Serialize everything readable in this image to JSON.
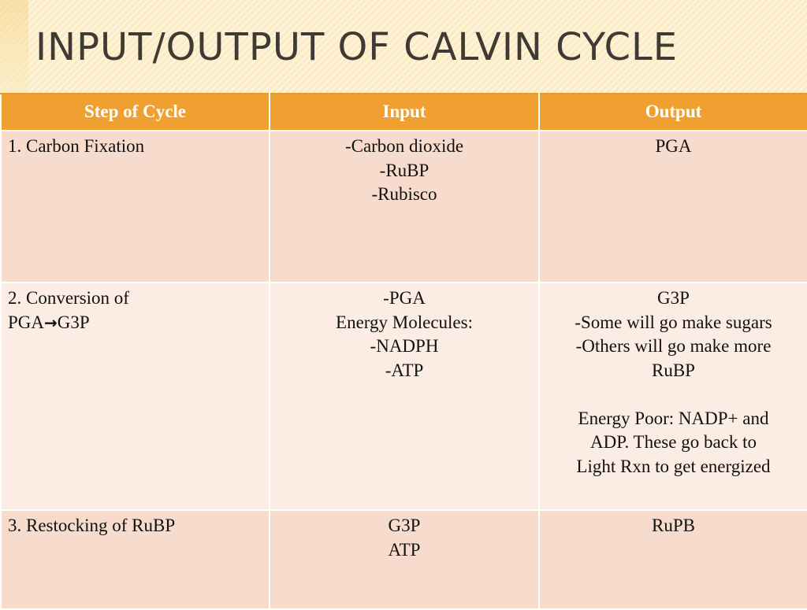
{
  "slide": {
    "title": "INPUT/OUTPUT OF CALVIN CYCLE"
  },
  "table": {
    "headers": [
      "Step of Cycle",
      "Input",
      "Output"
    ],
    "rows": [
      {
        "step_lines": [
          "1. Carbon Fixation"
        ],
        "input_lines": [
          "-Carbon dioxide",
          "-RuBP",
          "-Rubisco"
        ],
        "output_lines": [
          "PGA"
        ]
      },
      {
        "step_line1": "2. Conversion of",
        "step_line2_a": "PGA",
        "step_line2_arrow": "→",
        "step_line2_b": "G3P",
        "input_lines": [
          "-PGA",
          "Energy Molecules:",
          "-NADPH",
          "-ATP"
        ],
        "output_lines": [
          "G3P",
          "-Some will go make sugars",
          "-Others will go make more",
          "RuBP",
          "",
          "Energy Poor: NADP+ and",
          "ADP. These go back to",
          "Light Rxn to get energized"
        ]
      },
      {
        "step_lines": [
          "3. Restocking of RuBP"
        ],
        "input_lines": [
          "G3P",
          "ATP"
        ],
        "output_lines": [
          "RuPB"
        ]
      }
    ]
  },
  "colors": {
    "title_band": "#fbecc4",
    "header_bg": "#f0a030",
    "row_dark": "#f7dccd",
    "row_light": "#fbece4"
  }
}
